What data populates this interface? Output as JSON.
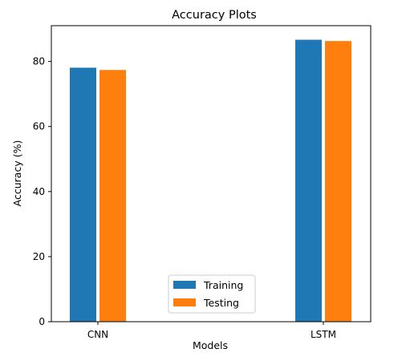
{
  "chart_data": {
    "type": "bar",
    "title": "Accuracy Plots",
    "xlabel": "Models",
    "ylabel": "Accuracy (%)",
    "categories": [
      "CNN",
      "LSTM"
    ],
    "series": [
      {
        "name": "Training",
        "values": [
          78.2,
          86.8
        ],
        "color": "#1f77b4"
      },
      {
        "name": "Testing",
        "values": [
          77.5,
          86.4
        ],
        "color": "#ff7f0e"
      }
    ],
    "ylim": [
      0,
      91
    ],
    "yticks": [
      0,
      20,
      40,
      60,
      80
    ],
    "grid": false,
    "legend_position": "lower-center"
  }
}
